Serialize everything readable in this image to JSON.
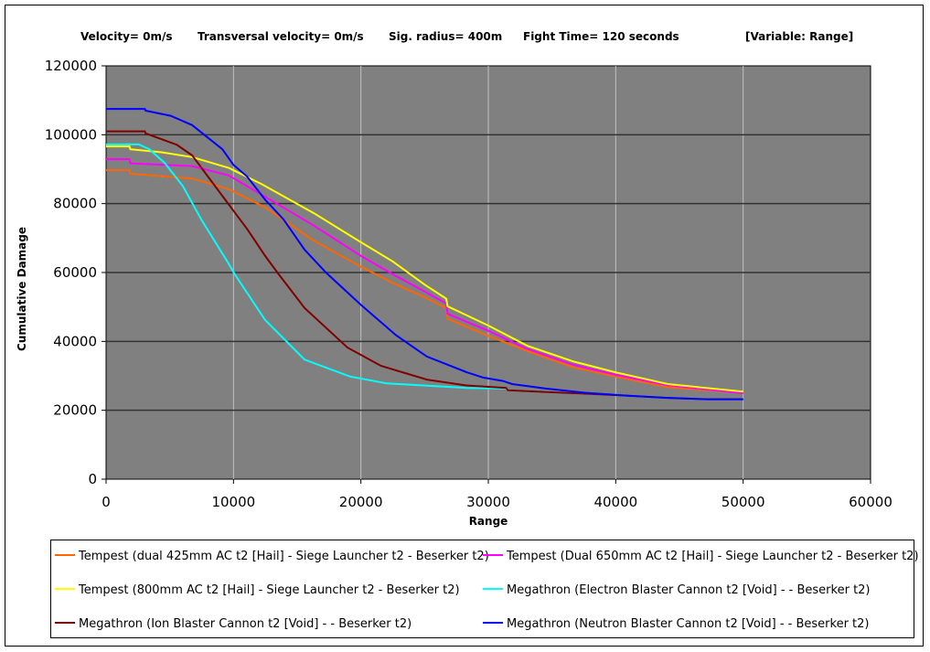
{
  "header": {
    "velocity": "Velocity= 0m/s",
    "transversal": "Transversal velocity= 0m/s",
    "sig_radius": "Sig. radius= 400m",
    "fight_time": "Fight Time= 120 seconds",
    "variable": "[Variable: Range]"
  },
  "chart_data": {
    "type": "line",
    "title": "",
    "xlabel": "Range",
    "ylabel": "Cumulative Damage",
    "xlim": [
      0,
      60000
    ],
    "ylim": [
      0,
      120000
    ],
    "x_ticks": [
      "0",
      "10000",
      "20000",
      "30000",
      "40000",
      "50000",
      "60000"
    ],
    "y_ticks": [
      "0",
      "20000",
      "40000",
      "60000",
      "80000",
      "100000",
      "120000"
    ],
    "grid": true,
    "legend_position": "bottom",
    "series": [
      {
        "name": "Tempest (dual 425mm AC t2 [Hail] - Siege Launcher t2 - Beserker t2)",
        "color": "#ff6600",
        "points": [
          [
            0,
            89700
          ],
          [
            1840,
            89700
          ],
          [
            1900,
            88700
          ],
          [
            6750,
            87300
          ],
          [
            9620,
            84200
          ],
          [
            12490,
            78900
          ],
          [
            16320,
            69200
          ],
          [
            20000,
            61700
          ],
          [
            22500,
            57000
          ],
          [
            25000,
            52800
          ],
          [
            26700,
            49700
          ],
          [
            26800,
            46600
          ],
          [
            30000,
            41600
          ],
          [
            33070,
            37200
          ],
          [
            36660,
            32500
          ],
          [
            40000,
            29800
          ],
          [
            44080,
            26700
          ],
          [
            50000,
            25100
          ]
        ]
      },
      {
        "name": "Tempest (Dual 650mm AC t2 [Hail] - Siege Launcher t2 - Beserker t2)",
        "color": "#ff00ff",
        "points": [
          [
            0,
            92900
          ],
          [
            1840,
            92900
          ],
          [
            1900,
            91700
          ],
          [
            6750,
            90900
          ],
          [
            9620,
            88200
          ],
          [
            12490,
            82000
          ],
          [
            16320,
            73600
          ],
          [
            20000,
            64800
          ],
          [
            22500,
            59500
          ],
          [
            25000,
            54500
          ],
          [
            26700,
            51000
          ],
          [
            26800,
            48000
          ],
          [
            30000,
            43100
          ],
          [
            33070,
            37800
          ],
          [
            36660,
            33200
          ],
          [
            40000,
            30300
          ],
          [
            44080,
            27300
          ],
          [
            50000,
            24950
          ]
        ]
      },
      {
        "name": "Tempest (800mm AC t2 [Hail] - Siege Launcher t2 - Beserker t2)",
        "color": "#ffff00",
        "points": [
          [
            0,
            96600
          ],
          [
            1840,
            96600
          ],
          [
            1900,
            95800
          ],
          [
            4350,
            94900
          ],
          [
            6750,
            93500
          ],
          [
            9620,
            90400
          ],
          [
            12250,
            85600
          ],
          [
            16320,
            77200
          ],
          [
            20000,
            68800
          ],
          [
            22500,
            63200
          ],
          [
            25000,
            56500
          ],
          [
            26700,
            52400
          ],
          [
            26800,
            50200
          ],
          [
            30000,
            44600
          ],
          [
            33070,
            38700
          ],
          [
            36660,
            34200
          ],
          [
            40000,
            31000
          ],
          [
            44080,
            27600
          ],
          [
            50000,
            25400
          ]
        ]
      },
      {
        "name": "Megathron (Electron Blaster Cannon t2 [Void] -  - Beserker t2)",
        "color": "#00ffff",
        "points": [
          [
            0,
            97200
          ],
          [
            2560,
            97200
          ],
          [
            3400,
            95800
          ],
          [
            4600,
            91800
          ],
          [
            6030,
            85100
          ],
          [
            7470,
            75400
          ],
          [
            9620,
            62600
          ],
          [
            10100,
            59500
          ],
          [
            12490,
            46200
          ],
          [
            15580,
            34700
          ],
          [
            19170,
            29800
          ],
          [
            22040,
            27800
          ],
          [
            28280,
            26500
          ],
          [
            31400,
            26300
          ],
          [
            31500,
            25800
          ],
          [
            34600,
            25300
          ],
          [
            37740,
            24800
          ],
          [
            41000,
            24200
          ],
          [
            44080,
            23600
          ],
          [
            47190,
            23200
          ],
          [
            50000,
            23200
          ]
        ]
      },
      {
        "name": "Megathron (Ion Blaster Cannon t2 [Void] -  - Beserker t2)",
        "color": "#800000",
        "points": [
          [
            0,
            101000
          ],
          [
            3040,
            101000
          ],
          [
            3100,
            100400
          ],
          [
            5550,
            97100
          ],
          [
            6750,
            94000
          ],
          [
            9620,
            79800
          ],
          [
            11060,
            72700
          ],
          [
            12490,
            64800
          ],
          [
            13440,
            60000
          ],
          [
            15580,
            49700
          ],
          [
            18950,
            38200
          ],
          [
            21580,
            32900
          ],
          [
            25180,
            28900
          ],
          [
            28280,
            27200
          ],
          [
            31400,
            26500
          ],
          [
            31520,
            25800
          ],
          [
            34600,
            25300
          ],
          [
            37740,
            24800
          ],
          [
            41000,
            24200
          ],
          [
            44080,
            23600
          ],
          [
            47190,
            23200
          ],
          [
            50000,
            23200
          ]
        ]
      },
      {
        "name": "Megathron (Neutron Blaster Cannon t2 [Void] -  - Beserker t2)",
        "color": "#0000ff",
        "points": [
          [
            0,
            107500
          ],
          [
            3040,
            107500
          ],
          [
            3100,
            107000
          ],
          [
            5070,
            105500
          ],
          [
            6750,
            102800
          ],
          [
            9130,
            95800
          ],
          [
            9980,
            91300
          ],
          [
            11060,
            87900
          ],
          [
            12490,
            81100
          ],
          [
            13930,
            75400
          ],
          [
            15580,
            66600
          ],
          [
            17280,
            59900
          ],
          [
            20000,
            50600
          ],
          [
            22760,
            41800
          ],
          [
            25180,
            35600
          ],
          [
            28280,
            31100
          ],
          [
            29600,
            29500
          ],
          [
            31150,
            28500
          ],
          [
            31870,
            27600
          ],
          [
            34500,
            26300
          ],
          [
            37600,
            25100
          ],
          [
            40970,
            24200
          ],
          [
            44080,
            23600
          ],
          [
            47190,
            23200
          ],
          [
            50000,
            23200
          ]
        ]
      }
    ]
  }
}
